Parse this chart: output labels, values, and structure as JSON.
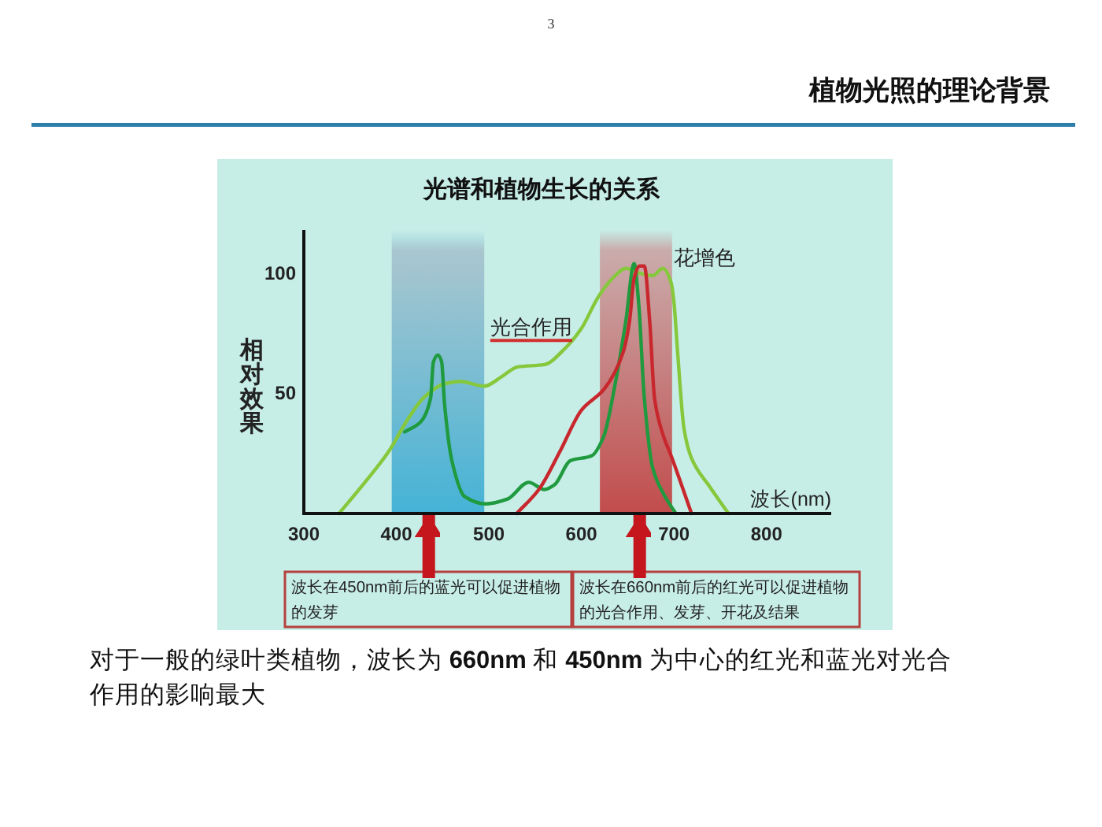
{
  "chart_data": {
    "type": "line",
    "title": "植物光照的理论背景",
    "subtitle": "光谱和植物生长的关系",
    "xlabel": "波长(nm)",
    "ylabel": "相对效果",
    "xlim": [
      300,
      870
    ],
    "ylim": [
      0,
      118
    ],
    "xticks": [
      300,
      400,
      500,
      600,
      700,
      800
    ],
    "yticks": [
      50,
      100
    ],
    "series": [
      {
        "color": "#86c83c",
        "x": [
          338,
          366,
          392,
          412,
          429,
          452,
          469,
          495,
          514,
          531,
          560,
          583,
          600,
          618,
          634,
          648,
          663,
          677,
          688,
          697,
          700,
          704,
          711,
          719,
          739,
          759
        ],
        "values": [
          0,
          13,
          26,
          39,
          48,
          54,
          55,
          53,
          57,
          61,
          62,
          69,
          77,
          90,
          98,
          102,
          100,
          99,
          102,
          96,
          88,
          67,
          35,
          23,
          11,
          0
        ]
      },
      {
        "color": "#1f9a3e",
        "x": [
          409,
          426,
          437,
          440,
          445,
          449,
          452,
          460,
          474,
          497,
          520,
          543,
          560,
          571,
          588,
          611,
          624,
          637,
          648,
          657,
          662,
          668,
          677,
          689,
          702
        ],
        "values": [
          34,
          38,
          48,
          63,
          66,
          63,
          46,
          22,
          7,
          4,
          6,
          13,
          10,
          12,
          22,
          24,
          32,
          55,
          80,
          104,
          87,
          48,
          19,
          8,
          0
        ]
      },
      {
        "color": "#c8282d",
        "x": [
          530,
          554,
          577,
          600,
          625,
          645,
          652,
          657,
          663,
          668,
          674,
          679,
          688,
          697,
          719
        ],
        "values": [
          0,
          10,
          26,
          43,
          52,
          67,
          80,
          98,
          103,
          103,
          79,
          48,
          33,
          24,
          0
        ]
      }
    ],
    "bands": [
      {
        "axis": "x",
        "from": 395,
        "to": 495,
        "color": "#45b3d6"
      },
      {
        "axis": "x",
        "from": 620,
        "to": 698,
        "color": "#c24c4c",
        "label": "花增色"
      }
    ],
    "annotations": [
      "3",
      {
        "text": "光合作用",
        "x": 590,
        "y": 72
      },
      {
        "text": "波长在450nm前后的蓝光可以促进植物的发芽",
        "x": 435,
        "y": 0
      },
      {
        "text": "波长在660nm前后的红光可以促进植物的光合作用、发芽、开花及结果",
        "x": 663,
        "y": 0
      },
      "对于一般的绿叶类植物，波长为 660nm 和 450nm 为中心的红光和蓝光对光合作用的影响最大"
    ],
    "grid": false,
    "marker": "none",
    "line_style": "solid"
  }
}
